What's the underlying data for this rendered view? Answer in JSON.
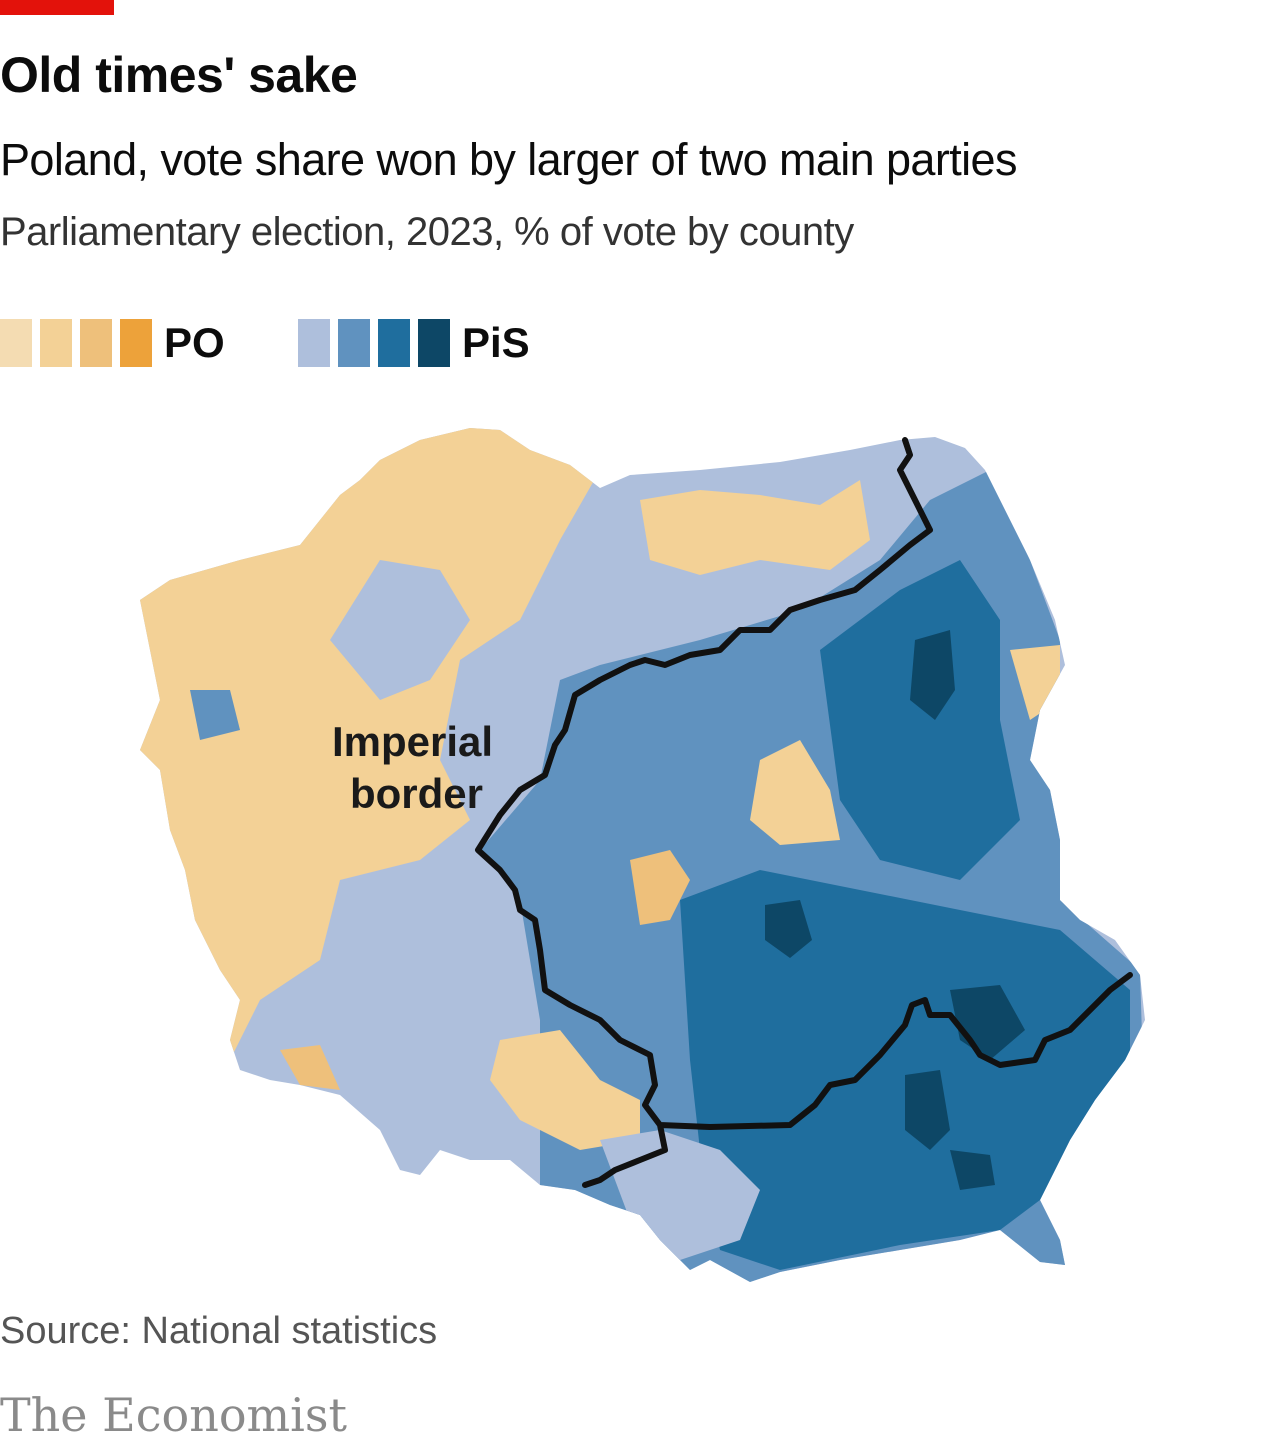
{
  "header": {
    "title": "Old times' sake",
    "subtitle": "Poland, vote share won by larger of two main parties",
    "description": "Parliamentary election, 2023, % of vote by county"
  },
  "legend": {
    "po": {
      "label": "PO",
      "colors": [
        "#f4dcb2",
        "#f3d196",
        "#eec07b",
        "#eda23a"
      ]
    },
    "pis": {
      "label": "PiS",
      "colors": [
        "#aebfdc",
        "#6092bf",
        "#1f6e9e",
        "#0d4766"
      ]
    }
  },
  "map": {
    "annotation_line1": "Imperial",
    "annotation_line2": "border",
    "colors": {
      "po_light": "#f3d196",
      "po_mid": "#eec07b",
      "pis_light": "#aebfdc",
      "pis_mid": "#6092bf",
      "pis_dark": "#1f6e9e",
      "pis_darkest": "#0d4766",
      "border_line": "#111111"
    }
  },
  "footer": {
    "source": "Source: National statistics",
    "brand": "The Economist"
  }
}
